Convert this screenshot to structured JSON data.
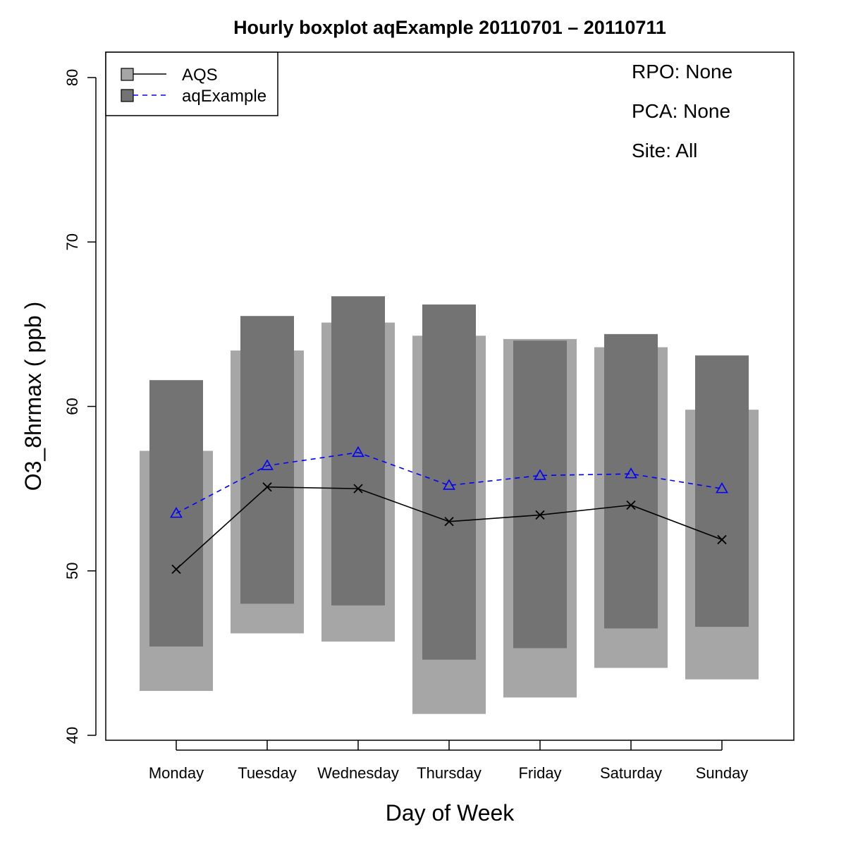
{
  "chart_data": {
    "type": "boxplot",
    "title": "Hourly boxplot aqExample 20110701 – 20110711",
    "xlabel": "Day of Week",
    "ylabel": "O3_8hrmax ( ppb )",
    "ylim": [
      40,
      80
    ],
    "yticks": [
      40,
      50,
      60,
      70,
      80
    ],
    "grid": false,
    "legend_position": "top-left",
    "categories": [
      "Monday",
      "Tuesday",
      "Wednesday",
      "Thursday",
      "Friday",
      "Saturday",
      "Sunday"
    ],
    "series": [
      {
        "name": "AQS",
        "box_color": "#a6a6a6",
        "line_color": "#000000",
        "line_style": "solid",
        "marker": "x",
        "q1": [
          42.7,
          46.2,
          45.7,
          41.3,
          42.3,
          44.1,
          43.4
        ],
        "q3": [
          57.3,
          63.4,
          65.1,
          64.3,
          64.1,
          63.6,
          59.8
        ],
        "mean": [
          50.1,
          55.1,
          55.0,
          53.0,
          53.4,
          54.0,
          51.9
        ]
      },
      {
        "name": "aqExample",
        "box_color": "#737373",
        "line_color": "#0000ff",
        "line_style": "dashed",
        "marker": "triangle",
        "q1": [
          45.4,
          48.0,
          47.9,
          44.6,
          45.3,
          46.5,
          46.6
        ],
        "q3": [
          61.6,
          65.5,
          66.7,
          66.2,
          64.0,
          64.4,
          63.1
        ],
        "mean": [
          53.5,
          56.4,
          57.2,
          55.2,
          55.8,
          55.9,
          55.0
        ]
      }
    ],
    "annotations": [
      "RPO: None",
      "PCA: None",
      "Site: All"
    ]
  }
}
